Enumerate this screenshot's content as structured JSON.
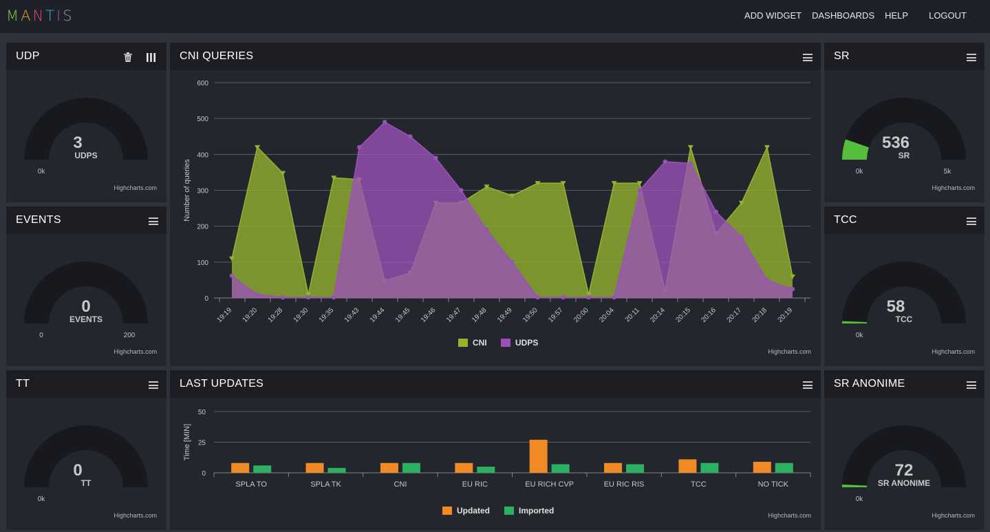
{
  "app": {
    "logo_letters": [
      "M",
      "A",
      "N",
      "T",
      "I",
      "S"
    ],
    "logo_colors": [
      "#8bc34a",
      "#f0a030",
      "#e04a6a",
      "#3fb2d8",
      "#8a5ec0",
      "#9a9aa0"
    ]
  },
  "nav": {
    "add_widget": "ADD WIDGET",
    "dashboards": "DASHBOARDS",
    "help": "HELP",
    "logout": "LOGOUT"
  },
  "credit": "Highcharts.com",
  "gauges": {
    "udp": {
      "title": "UDP",
      "value": "3",
      "label": "UDPS",
      "min": "0k",
      "max": "",
      "fraction": 0.0,
      "color": "#55bf3b"
    },
    "events": {
      "title": "EVENTS",
      "value": "0",
      "label": "EVENTS",
      "min": "0",
      "max": "200",
      "fraction": 0.0,
      "color": "#55bf3b"
    },
    "tt": {
      "title": "TT",
      "value": "0",
      "label": "TT",
      "min": "0k",
      "max": "",
      "fraction": 0.0,
      "color": "#55bf3b"
    },
    "sr": {
      "title": "SR",
      "value": "536",
      "label": "SR",
      "min": "0k",
      "max": "5k",
      "fraction": 0.107,
      "color": "#55bf3b"
    },
    "tcc": {
      "title": "TCC",
      "value": "58",
      "label": "TCC",
      "min": "0k",
      "max": "",
      "fraction": 0.012,
      "color": "#55bf3b"
    },
    "sr_anonime": {
      "title": "SR ANONIME",
      "value": "72",
      "label": "SR ANONIME",
      "min": "0k",
      "max": "",
      "fraction": 0.014,
      "color": "#55bf3b"
    }
  },
  "chart_data": [
    {
      "type": "area",
      "title": "CNI QUERIES",
      "xlabel": "",
      "ylabel": "Number of queries",
      "ylim": [
        0,
        600
      ],
      "yticks": [
        0,
        100,
        200,
        300,
        400,
        500,
        600
      ],
      "categories": [
        "19:19",
        "19:20",
        "19:28",
        "19:30",
        "19:35",
        "19:43",
        "19:44",
        "19:45",
        "19:46",
        "19:47",
        "19:48",
        "19:49",
        "19:50",
        "19:57",
        "20:00",
        "20:04",
        "20:11",
        "20:14",
        "20:15",
        "20:16",
        "20:17",
        "20:18",
        "20:19"
      ],
      "series": [
        {
          "name": "CNI",
          "color": "#94b430",
          "marker": "triangle-down",
          "values": [
            110,
            420,
            348,
            10,
            335,
            330,
            48,
            70,
            265,
            265,
            310,
            285,
            320,
            320,
            10,
            320,
            320,
            20,
            420,
            180,
            265,
            420,
            60
          ]
        },
        {
          "name": "UDPS",
          "color": "#9b52b8",
          "marker": "circle",
          "values": [
            62,
            10,
            2,
            2,
            2,
            420,
            490,
            450,
            390,
            300,
            190,
            100,
            2,
            2,
            2,
            2,
            300,
            380,
            375,
            240,
            170,
            50,
            25
          ]
        }
      ],
      "legend": "bottom-center"
    },
    {
      "type": "bar",
      "title": "LAST UPDATES",
      "xlabel": "",
      "ylabel": "Time [MIN]",
      "ylim": [
        0,
        50
      ],
      "yticks": [
        0,
        25,
        50
      ],
      "categories": [
        "SPLA TO",
        "SPLA TK",
        "CNI",
        "EU RIC",
        "EU RICH CVP",
        "EU RIC RIS",
        "TCC",
        "NO TICK"
      ],
      "series": [
        {
          "name": "Updated",
          "color": "#f08a24",
          "values": [
            8,
            8,
            8,
            8,
            27,
            8,
            11,
            9
          ]
        },
        {
          "name": "Imported",
          "color": "#2eb062",
          "values": [
            6,
            4,
            8,
            5,
            7,
            7,
            8,
            8
          ]
        }
      ],
      "legend": "bottom-center"
    }
  ]
}
